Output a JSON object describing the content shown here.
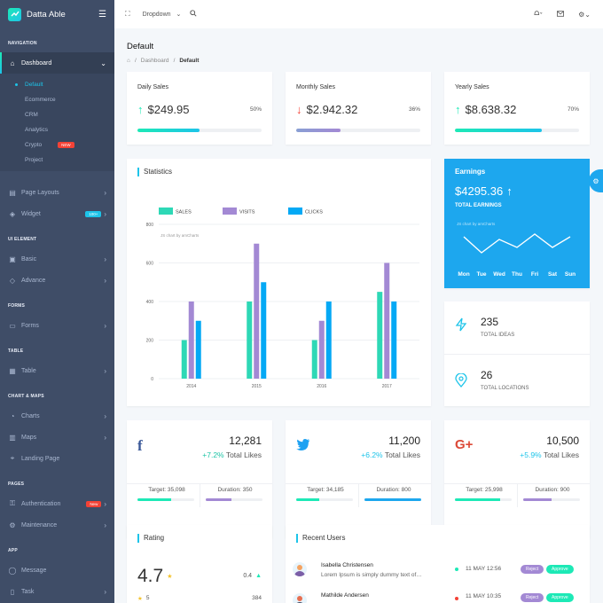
{
  "brand": {
    "name": "Datta Able"
  },
  "header": {
    "dropdown_label": "Dropdown"
  },
  "sidebar": {
    "nav_caption": "Navigation",
    "dashboard": "Dashboard",
    "dashboard_items": [
      "Default",
      "Ecommerce",
      "CRM",
      "Analytics",
      "Crypto",
      "Project"
    ],
    "crypto_badge": "NEW",
    "page_layouts": "Page Layouts",
    "widget": "Widget",
    "widget_badge": "100+",
    "ui_caption": "UI Element",
    "basic": "Basic",
    "advance": "Advance",
    "forms_caption": "Forms",
    "forms": "Forms",
    "table_caption": "Table",
    "table": "Table",
    "chart_caption": "Chart & Maps",
    "charts": "Charts",
    "maps": "Maps",
    "landing": "Landing Page",
    "pages_caption": "Pages",
    "authentication": "Authentication",
    "auth_badge": "New",
    "maintenance": "Maintenance",
    "app_caption": "App",
    "message": "Message",
    "task": "Task"
  },
  "page": {
    "title": "Default",
    "breadcrumb": [
      "Dashboard",
      "Default"
    ]
  },
  "sales": [
    {
      "title": "Daily Sales",
      "value": "$249.95",
      "pct": "50%",
      "trend": "up",
      "progress": 50,
      "color": "#1de9b6"
    },
    {
      "title": "Monthly Sales",
      "value": "$2.942.32",
      "pct": "36%",
      "trend": "down",
      "progress": 36,
      "color": "#a389d4"
    },
    {
      "title": "Yearly Sales",
      "value": "$8.638.32",
      "pct": "70%",
      "trend": "up",
      "progress": 70,
      "color": "#1de9b6"
    }
  ],
  "statistics": {
    "title": "Statistics",
    "amcharts_note": "JS chart by amCharts"
  },
  "chart_data": {
    "type": "bar",
    "categories": [
      "2014",
      "2015",
      "2016",
      "2017"
    ],
    "series": [
      {
        "name": "SALES",
        "values": [
          200,
          400,
          200,
          450
        ],
        "color": "#2ed8b6"
      },
      {
        "name": "VISITS",
        "values": [
          400,
          700,
          300,
          600
        ],
        "color": "#a389d4"
      },
      {
        "name": "CLICKS",
        "values": [
          300,
          500,
          400,
          400
        ],
        "color": "#04a9f5"
      }
    ],
    "yticks": [
      "0",
      "200",
      "400",
      "600",
      "800"
    ],
    "ylim": [
      0,
      800
    ],
    "legend": "top",
    "grid": true
  },
  "earnings": {
    "title": "Earnings",
    "value": "$4295.36",
    "label": "TOTAL EARNINGS",
    "note": "JS chart by amCharts",
    "days": [
      "Mon",
      "Tue",
      "Wed",
      "Thu",
      "Fri",
      "Sat",
      "Sun"
    ],
    "line_values": [
      60,
      30,
      55,
      40,
      65,
      40,
      60
    ]
  },
  "ideas": {
    "value": "235",
    "label": "TOTAL IDEAS"
  },
  "locations": {
    "value": "26",
    "label": "TOTAL LOCATIONS"
  },
  "social": [
    {
      "icon": "f",
      "value": "12,281",
      "pct": "+7.2%",
      "label": "Total Likes",
      "target": "Target: 35,098",
      "duration": "Duration: 350",
      "icon_color": "#3b5998",
      "target_fill": 60,
      "duration_fill": 45
    },
    {
      "icon": "twitter",
      "value": "11,200",
      "pct": "+6.2%",
      "label": "Total Likes",
      "target": "Target: 34,185",
      "duration": "Duration: 800",
      "icon_color": "#1da1f2",
      "target_fill": 40,
      "duration_fill": 100
    },
    {
      "icon": "G+",
      "value": "10,500",
      "pct": "+5.9%",
      "label": "Total Likes",
      "target": "Target: 25,998",
      "duration": "Duration: 900",
      "icon_color": "#dc4a38",
      "target_fill": 80,
      "duration_fill": 50
    }
  ],
  "rating": {
    "title": "Rating",
    "score": "4.7",
    "side": "0.4",
    "row_star": "5",
    "row_count": "384"
  },
  "recent_users": {
    "title": "Recent Users",
    "users": [
      {
        "name": "Isabella Christensen",
        "desc": "Lorem Ipsum is simply dummy text of…",
        "date": "11 MAY 12:56",
        "status_color": "#1de9b6"
      },
      {
        "name": "Mathilde Andersen",
        "desc": "",
        "date": "11 MAY 10:35",
        "status_color": "#f44236"
      }
    ],
    "reject": "Reject",
    "approve": "Approve"
  }
}
